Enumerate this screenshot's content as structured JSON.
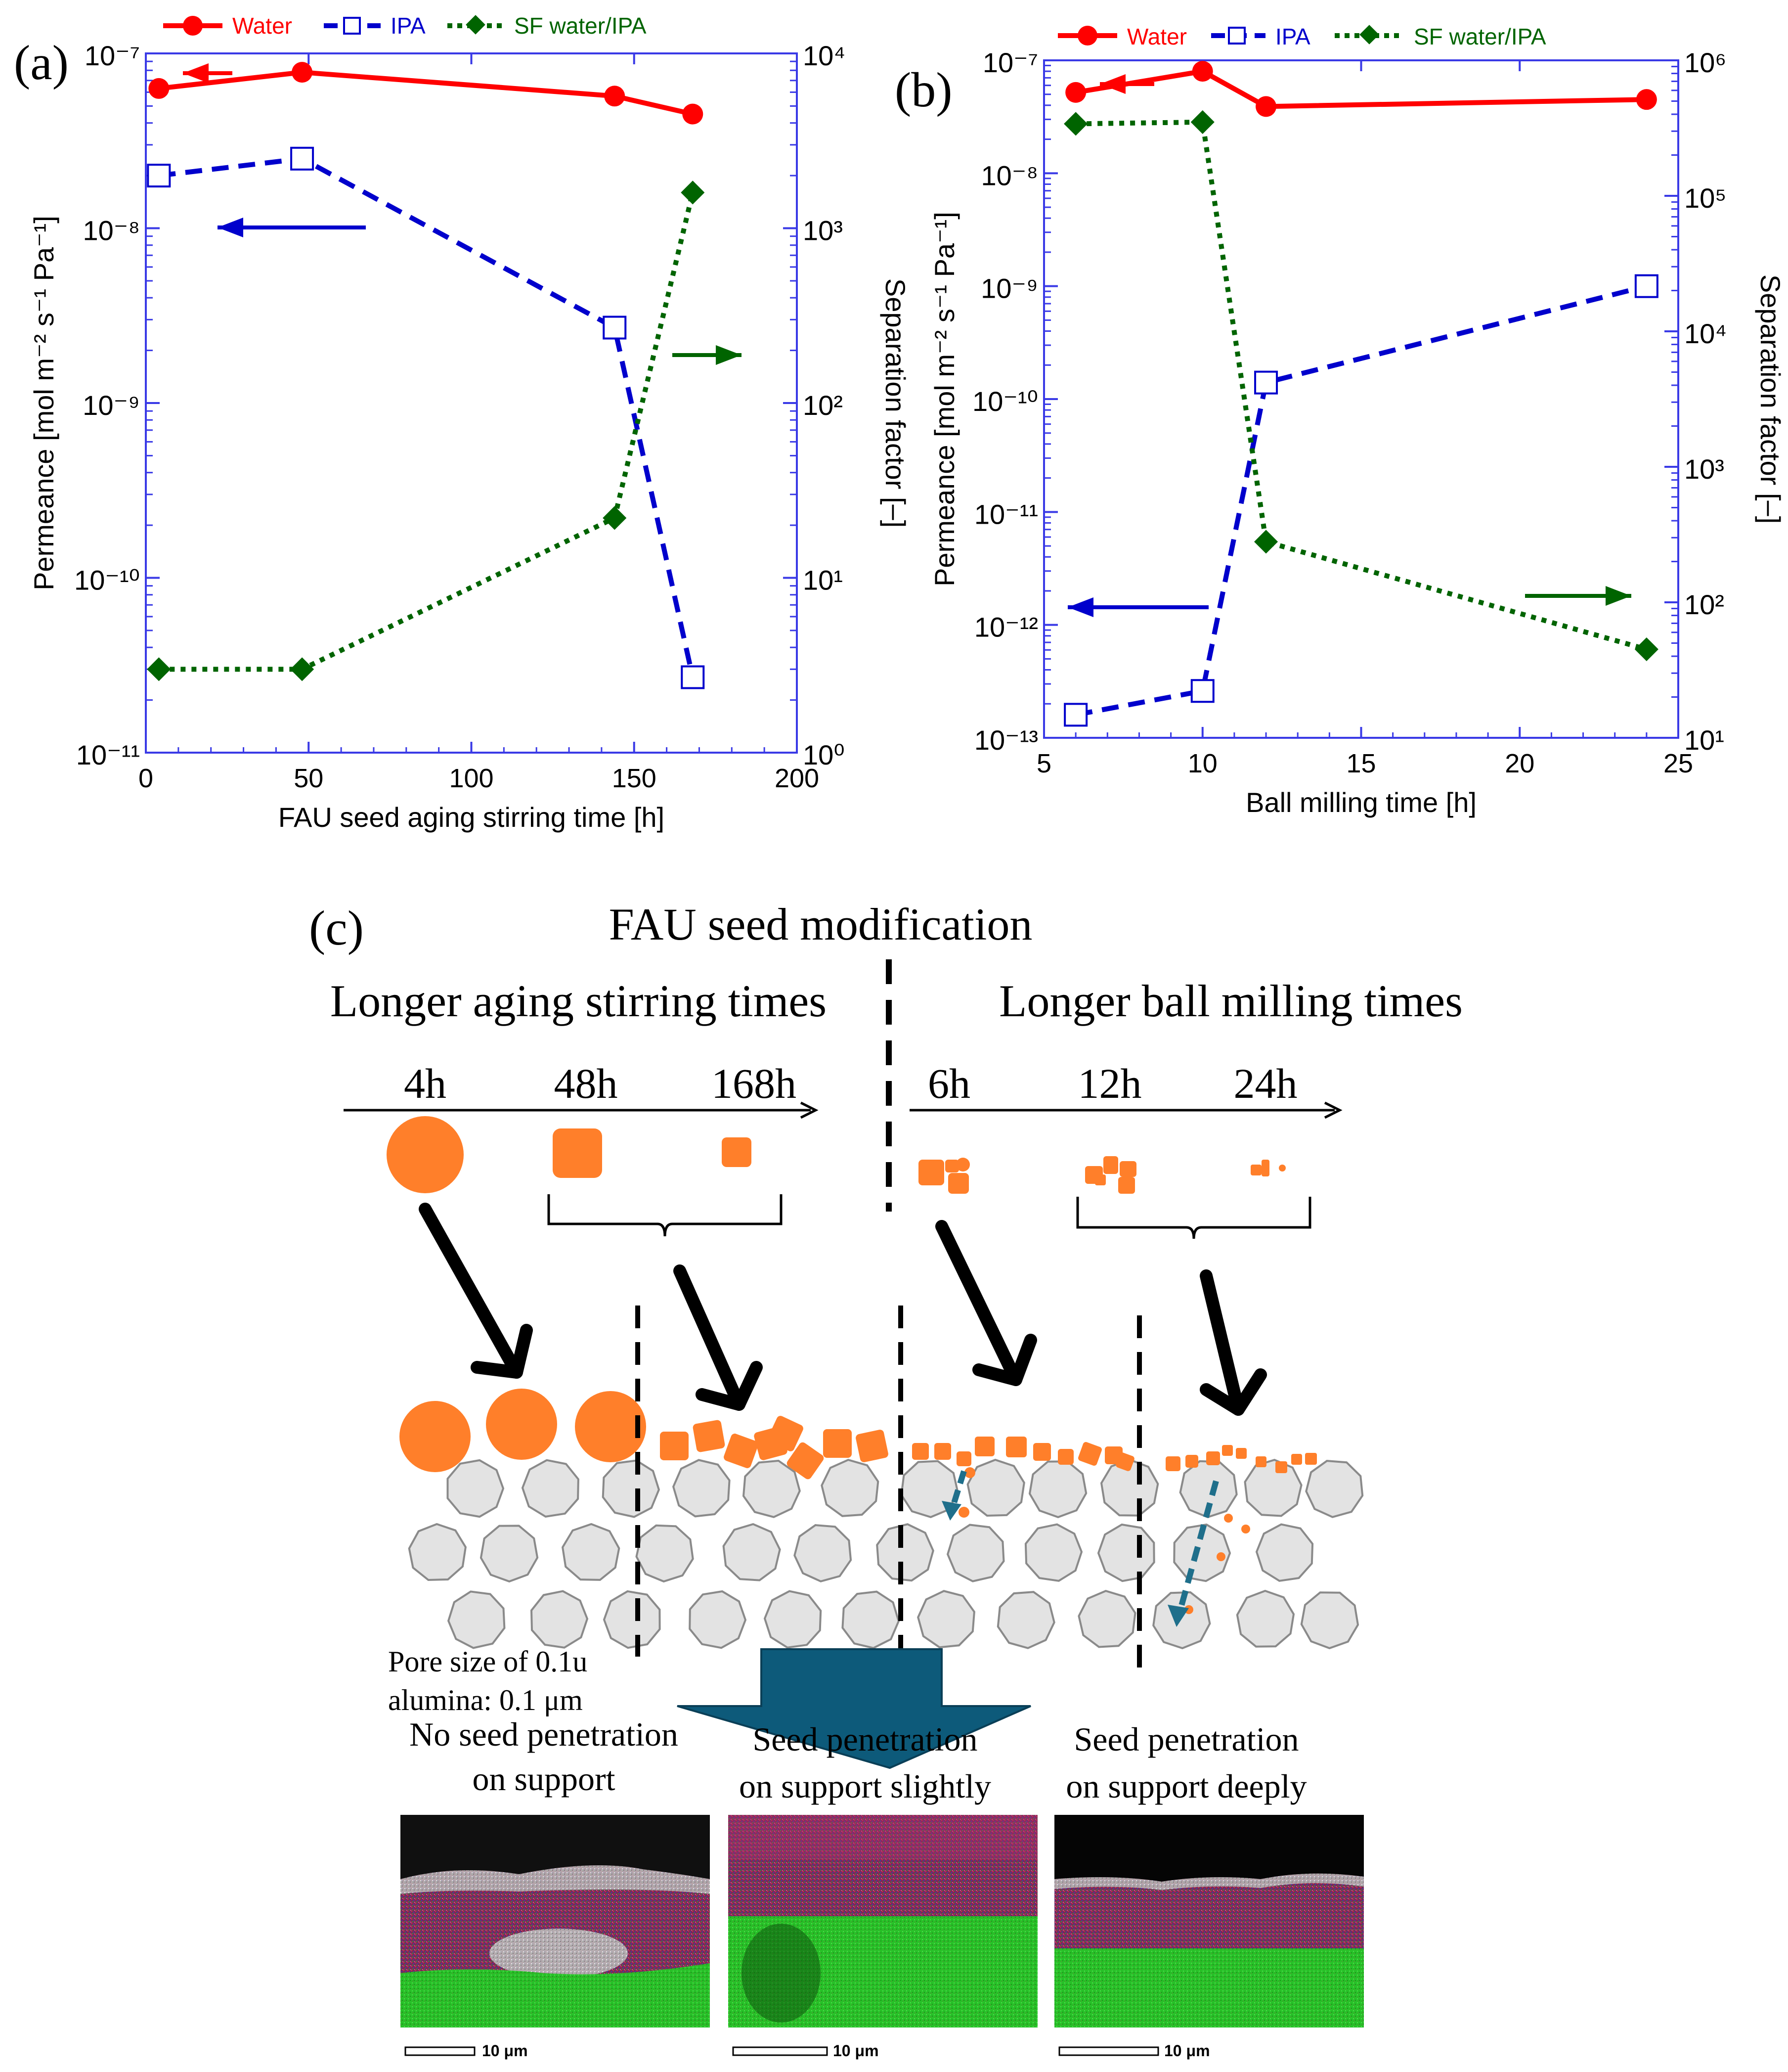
{
  "colors": {
    "water": "#ff0000",
    "ipa": "#0000cc",
    "sf": "#006400",
    "axis_frame": "#3a3ae6",
    "seed": "#ff7f2a",
    "support": "#e3e3e3",
    "penetration_arrow": "#1f6f8b",
    "big_arrow": "#0d5a7a"
  },
  "legend": {
    "water": "Water",
    "ipa": "IPA",
    "sf": "SF water/IPA"
  },
  "chart_data": [
    {
      "panel_label": "(a)",
      "type": "line",
      "xlabel": "FAU seed aging stirring time [h]",
      "ylabel": "Permeance [mol m⁻² s⁻¹ Pa⁻¹]",
      "y2label": "Separation factor [–]",
      "xlim": [
        0,
        200
      ],
      "x_ticks": [
        0,
        50,
        100,
        150,
        200
      ],
      "ylim": [
        1e-11,
        1e-07
      ],
      "y_scale": "log",
      "y_tick_exponents": [
        -11,
        -10,
        -9,
        -8,
        -7
      ],
      "y2lim": [
        1,
        10000
      ],
      "y2_scale": "log",
      "y2_tick_exponents": [
        0,
        1,
        2,
        3,
        4
      ],
      "series": [
        {
          "key": "water",
          "name": "Water",
          "axis": "left",
          "x": [
            4,
            48,
            144,
            168
          ],
          "y": [
            6.3e-08,
            7.8e-08,
            5.7e-08,
            4.5e-08
          ]
        },
        {
          "key": "ipa",
          "name": "IPA",
          "axis": "left",
          "x": [
            4,
            48,
            144,
            168
          ],
          "y": [
            2e-08,
            2.5e-08,
            2.7e-09,
            2.7e-11
          ]
        },
        {
          "key": "sf",
          "name": "SF water/IPA",
          "axis": "right",
          "x": [
            4,
            48,
            144,
            168
          ],
          "y": [
            3,
            3,
            22,
            1600
          ]
        }
      ],
      "annotations": [
        {
          "series": "water",
          "direction": "left-axis"
        },
        {
          "series": "ipa",
          "direction": "left-axis"
        },
        {
          "series": "sf",
          "direction": "right-axis"
        }
      ]
    },
    {
      "panel_label": "(b)",
      "type": "line",
      "xlabel": "Ball milling time [h]",
      "ylabel": "Permeance [mol m⁻² s⁻¹ Pa⁻¹]",
      "y2label": "Separation factor [–]",
      "xlim": [
        5,
        25
      ],
      "x_ticks": [
        5,
        10,
        15,
        20,
        25
      ],
      "ylim": [
        1e-13,
        1e-07
      ],
      "y_scale": "log",
      "y_tick_exponents": [
        -13,
        -12,
        -11,
        -10,
        -9,
        -8,
        -7
      ],
      "y2lim": [
        10,
        1000000
      ],
      "y2_scale": "log",
      "y2_tick_exponents": [
        1,
        2,
        3,
        4,
        5,
        6
      ],
      "series": [
        {
          "key": "water",
          "name": "Water",
          "axis": "left",
          "x": [
            6,
            10,
            12,
            24
          ],
          "y": [
            5.2e-08,
            8e-08,
            3.9e-08,
            4.5e-08
          ]
        },
        {
          "key": "ipa",
          "name": "IPA",
          "axis": "left",
          "x": [
            6,
            10,
            12,
            24
          ],
          "y": [
            1.6e-13,
            2.6e-13,
            1.4e-10,
            1e-09
          ]
        },
        {
          "key": "sf",
          "name": "SF water/IPA",
          "axis": "right",
          "x": [
            6,
            10,
            12,
            24
          ],
          "y": [
            340000,
            350000,
            280,
            45
          ]
        }
      ],
      "annotations": [
        {
          "series": "water",
          "direction": "left-axis"
        },
        {
          "series": "ipa",
          "direction": "left-axis"
        },
        {
          "series": "sf",
          "direction": "right-axis"
        }
      ]
    }
  ],
  "schematic": {
    "label": "(c)",
    "title": "FAU seed modification",
    "left_heading": "Longer aging stirring times",
    "right_heading": "Longer ball milling times",
    "left_times": [
      "4h",
      "48h",
      "168h"
    ],
    "right_times": [
      "6h",
      "12h",
      "24h"
    ],
    "pore_label_1": "Pore size of 0.1u",
    "pore_label_2": "alumina: 0.1 μm",
    "captions": [
      {
        "line1": "No seed penetration",
        "line2": "on support"
      },
      {
        "line1": "Seed penetration",
        "line2": "on support  slightly"
      },
      {
        "line1": "Seed penetration",
        "line2": "on support  deeply"
      }
    ],
    "scale_bar": "10 μm"
  }
}
